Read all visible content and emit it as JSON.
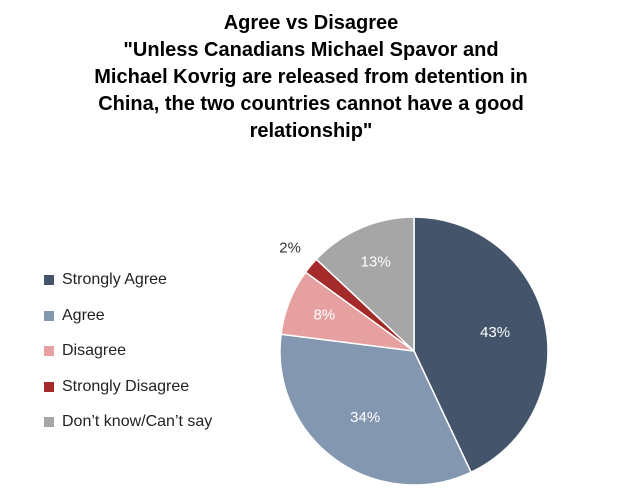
{
  "chart_data": {
    "type": "pie",
    "title_lines": [
      "Agree vs Disagree",
      "\"Unless Canadians Michael Spavor and",
      "Michael Kovrig are released from detention in",
      "China, the two countries cannot have a good",
      "relationship\""
    ],
    "slices": [
      {
        "label": "Strongly Agree",
        "value": 43,
        "display": "43%",
        "color": "#44546a",
        "label_color": "#ffffff"
      },
      {
        "label": "Agree",
        "value": 34,
        "display": "34%",
        "color": "#8497b0",
        "label_color": "#ffffff"
      },
      {
        "label": "Disagree",
        "value": 8,
        "display": "8%",
        "color": "#e6a0a0",
        "label_color": "#ffffff"
      },
      {
        "label": "Strongly Disagree",
        "value": 2,
        "display": "2%",
        "color": "#a52a2a",
        "label_color": "#333333"
      },
      {
        "label": "Don’t know/Can’t say",
        "value": 13,
        "display": "13%",
        "color": "#a6a6a6",
        "label_color": "#ffffff"
      }
    ],
    "legend_position": "left"
  }
}
